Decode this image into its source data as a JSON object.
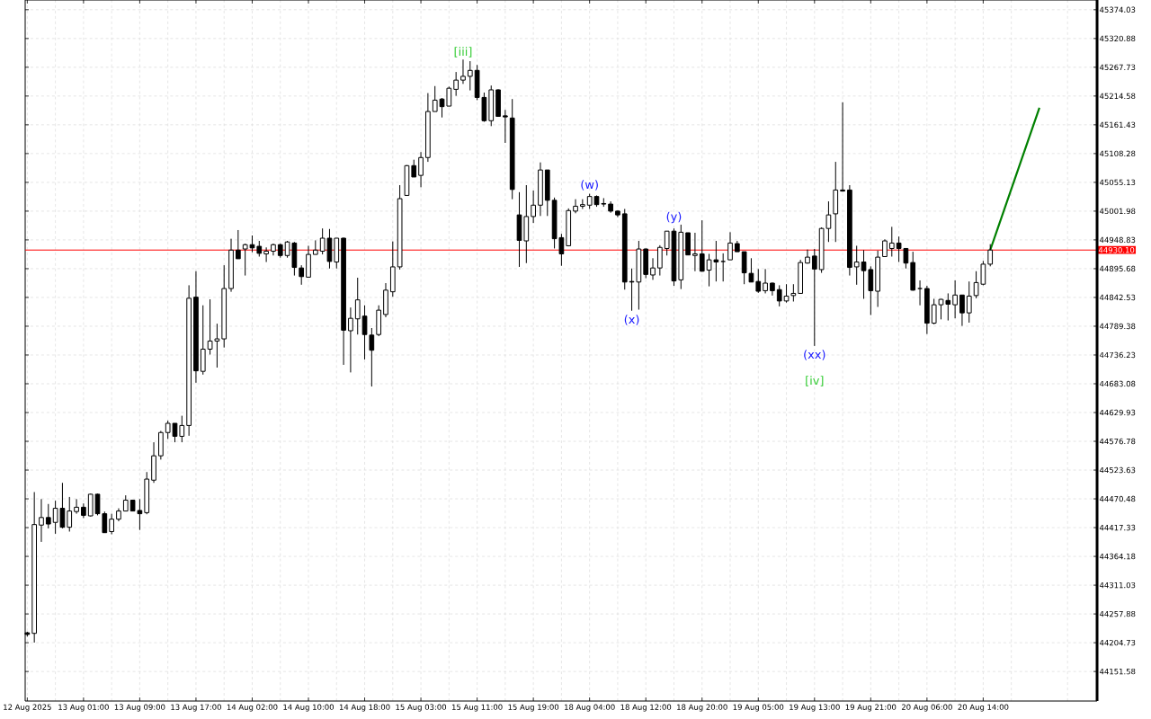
{
  "chart_data": {
    "type": "candlestick",
    "categories": [
      "12 Aug 2025",
      null,
      null,
      null,
      null,
      null,
      null,
      null,
      "13 Aug 01:00",
      null,
      null,
      null,
      null,
      null,
      null,
      null,
      "13 Aug 09:00",
      null,
      null,
      null,
      null,
      null,
      null,
      null,
      "13 Aug 17:00",
      null,
      null,
      null,
      null,
      null,
      null,
      null,
      "14 Aug 02:00",
      null,
      null,
      null,
      null,
      null,
      null,
      null,
      "14 Aug 10:00",
      null,
      null,
      null,
      null,
      null,
      null,
      null,
      "14 Aug 18:00",
      null,
      null,
      null,
      null,
      null,
      null,
      null,
      "15 Aug 03:00",
      null,
      null,
      null,
      null,
      null,
      null,
      null,
      "15 Aug 11:00",
      null,
      null,
      null,
      null,
      null,
      null,
      null,
      "15 Aug 19:00",
      null,
      null,
      null,
      null,
      null,
      null,
      null,
      "18 Aug 04:00",
      null,
      null,
      null,
      null,
      null,
      null,
      null,
      "18 Aug 12:00",
      null,
      null,
      null,
      null,
      null,
      null,
      null,
      "18 Aug 20:00",
      null,
      null,
      null,
      null,
      null,
      null,
      null,
      "19 Aug 05:00",
      null,
      null,
      null,
      null,
      null,
      null,
      null,
      "19 Aug 13:00",
      null,
      null,
      null,
      null,
      null,
      null,
      null,
      "19 Aug 21:00",
      null,
      null,
      null,
      null,
      null,
      null,
      null,
      "20 Aug 06:00",
      null,
      null,
      null,
      null,
      null,
      null,
      null,
      "20 Aug 14:00",
      null,
      null,
      null,
      null,
      null,
      null,
      null,
      null,
      null,
      null,
      null,
      null,
      null,
      null,
      null,
      null
    ],
    "ohlc": [
      [
        44223,
        44225,
        44216,
        44220
      ],
      [
        44222,
        44483,
        44205,
        44423
      ],
      [
        44422,
        44470,
        44391,
        44436
      ],
      [
        44436,
        44461,
        44416,
        44424
      ],
      [
        44427,
        44467,
        44406,
        44453
      ],
      [
        44453,
        44500,
        44416,
        44418
      ],
      [
        44418,
        44474,
        44410,
        44448
      ],
      [
        44447,
        44470,
        44443,
        44455
      ],
      [
        44455,
        44462,
        44435,
        44440
      ],
      [
        44439,
        44480,
        44438,
        44479
      ],
      [
        44479,
        44480,
        44440,
        44443
      ],
      [
        44443,
        44447,
        44408,
        44408
      ],
      [
        44410,
        44443,
        44405,
        44433
      ],
      [
        44433,
        44453,
        44429,
        44448
      ],
      [
        44448,
        44477,
        44448,
        44468
      ],
      [
        44468,
        44468,
        44448,
        44448
      ],
      [
        44449,
        44470,
        44413,
        44443
      ],
      [
        44445,
        44520,
        44442,
        44507
      ],
      [
        44505,
        44575,
        44500,
        44550
      ],
      [
        44550,
        44596,
        44543,
        44593
      ],
      [
        44593,
        44615,
        44581,
        44610
      ],
      [
        44610,
        44610,
        44575,
        44586
      ],
      [
        44586,
        44624,
        44575,
        44606
      ],
      [
        44606,
        44865,
        44587,
        44841
      ],
      [
        44843,
        44891,
        44685,
        44707
      ],
      [
        44706,
        44828,
        44700,
        44747
      ],
      [
        44747,
        44839,
        44737,
        44762
      ],
      [
        44762,
        44794,
        44713,
        44766
      ],
      [
        44766,
        44902,
        44750,
        44859
      ],
      [
        44859,
        44951,
        44853,
        44930
      ],
      [
        44930,
        44967,
        44914,
        44914
      ],
      [
        44932,
        44942,
        44883,
        44940
      ],
      [
        44940,
        44957,
        44926,
        44934
      ],
      [
        44937,
        44947,
        44918,
        44924
      ],
      [
        44923,
        44935,
        44908,
        44928
      ],
      [
        44928,
        44942,
        44920,
        44940
      ],
      [
        44940,
        44942,
        44916,
        44920
      ],
      [
        44920,
        44947,
        44916,
        44945
      ],
      [
        44943,
        44945,
        44883,
        44898
      ],
      [
        44897,
        44902,
        44866,
        44881
      ],
      [
        44880,
        44938,
        44880,
        44922
      ],
      [
        44922,
        44948,
        44922,
        44930
      ],
      [
        44928,
        44970,
        44922,
        44952
      ],
      [
        44952,
        44969,
        44896,
        44909
      ],
      [
        44908,
        44952,
        44896,
        44952
      ],
      [
        44952,
        44953,
        44718,
        44782
      ],
      [
        44781,
        44824,
        44704,
        44804
      ],
      [
        44803,
        44879,
        44774,
        44838
      ],
      [
        44808,
        44828,
        44728,
        44774
      ],
      [
        44773,
        44786,
        44678,
        44745
      ],
      [
        44774,
        44828,
        44771,
        44819
      ],
      [
        44811,
        44869,
        44806,
        44856
      ],
      [
        44853,
        44946,
        44844,
        44899
      ],
      [
        44899,
        45050,
        44894,
        45025
      ],
      [
        45031,
        45087,
        45031,
        45086
      ],
      [
        45086,
        45097,
        45065,
        45065
      ],
      [
        45068,
        45111,
        45046,
        45101
      ],
      [
        45101,
        45220,
        45093,
        45186
      ],
      [
        45186,
        45233,
        45186,
        45207
      ],
      [
        45209,
        45211,
        45175,
        45195
      ],
      [
        45196,
        45232,
        45196,
        45229
      ],
      [
        45227,
        45259,
        45215,
        45244
      ],
      [
        45244,
        45282,
        45237,
        45251
      ],
      [
        45251,
        45279,
        45225,
        45262
      ],
      [
        45262,
        45272,
        45207,
        45212
      ],
      [
        45212,
        45221,
        45167,
        45169
      ],
      [
        45169,
        45234,
        45159,
        45226
      ],
      [
        45226,
        45227,
        45177,
        45177
      ],
      [
        45178,
        45189,
        45128,
        45176
      ],
      [
        45174,
        45209,
        45024,
        45042
      ],
      [
        44995,
        45037,
        44899,
        44948
      ],
      [
        44947,
        45050,
        44906,
        44992
      ],
      [
        44992,
        45040,
        44980,
        45013
      ],
      [
        45013,
        45092,
        44993,
        45078
      ],
      [
        45078,
        45078,
        44993,
        45022
      ],
      [
        45022,
        45027,
        44933,
        44951
      ],
      [
        44953,
        44960,
        44901,
        44923
      ],
      [
        44938,
        45007,
        44937,
        45003
      ],
      [
        45002,
        45024,
        44998,
        45011
      ],
      [
        45011,
        45024,
        45006,
        45014
      ],
      [
        45013,
        45034,
        45006,
        45029
      ],
      [
        45029,
        45031,
        45010,
        45014
      ],
      [
        45016,
        45026,
        45010,
        45015
      ],
      [
        45015,
        45020,
        44999,
        45002
      ],
      [
        45002,
        45003,
        44991,
        44995
      ],
      [
        44997,
        45006,
        44857,
        44871
      ],
      [
        44872,
        44896,
        44818,
        44871
      ],
      [
        44871,
        44947,
        44820,
        44932
      ],
      [
        44932,
        44933,
        44878,
        44885
      ],
      [
        44884,
        44915,
        44875,
        44897
      ],
      [
        44897,
        44939,
        44883,
        44935
      ],
      [
        44933,
        44965,
        44920,
        44965
      ],
      [
        44965,
        44970,
        44864,
        44873
      ],
      [
        44875,
        44977,
        44858,
        44963
      ],
      [
        44962,
        44962,
        44921,
        44921
      ],
      [
        44920,
        44962,
        44891,
        44923
      ],
      [
        44923,
        44985,
        44890,
        44891
      ],
      [
        44893,
        44923,
        44863,
        44912
      ],
      [
        44912,
        44947,
        44872,
        44908
      ],
      [
        44909,
        44924,
        44872,
        44909
      ],
      [
        44912,
        44963,
        44912,
        44943
      ],
      [
        44942,
        44947,
        44927,
        44927
      ],
      [
        44927,
        44927,
        44867,
        44888
      ],
      [
        44887,
        44915,
        44871,
        44871
      ],
      [
        44872,
        44895,
        44851,
        44854
      ],
      [
        44855,
        44895,
        44850,
        44869
      ],
      [
        44869,
        44870,
        44846,
        44855
      ],
      [
        44857,
        44865,
        44826,
        44836
      ],
      [
        44836,
        44867,
        44833,
        44845
      ],
      [
        44846,
        44867,
        44835,
        44850
      ],
      [
        44850,
        44912,
        44850,
        44907
      ],
      [
        44906,
        44931,
        44905,
        44917
      ],
      [
        44919,
        44932,
        44753,
        44895
      ],
      [
        44894,
        44972,
        44888,
        44970
      ],
      [
        44970,
        45020,
        44945,
        44995
      ],
      [
        44997,
        45093,
        44945,
        45041
      ],
      [
        45041,
        45203,
        45038,
        45039
      ],
      [
        45041,
        45050,
        44883,
        44898
      ],
      [
        44899,
        44938,
        44866,
        44908
      ],
      [
        44908,
        44930,
        44840,
        44892
      ],
      [
        44894,
        44900,
        44810,
        44855
      ],
      [
        44854,
        44929,
        44825,
        44917
      ],
      [
        44918,
        44950,
        44918,
        44947
      ],
      [
        44933,
        44973,
        44918,
        44943
      ],
      [
        44943,
        44955,
        44908,
        44933
      ],
      [
        44933,
        44933,
        44896,
        44906
      ],
      [
        44907,
        44927,
        44855,
        44856
      ],
      [
        44859,
        44874,
        44828,
        44859
      ],
      [
        44859,
        44864,
        44775,
        44795
      ],
      [
        44795,
        44840,
        44793,
        44829
      ],
      [
        44829,
        44840,
        44802,
        44839
      ],
      [
        44837,
        44850,
        44800,
        44830
      ],
      [
        44829,
        44874,
        44804,
        44847
      ],
      [
        44847,
        44847,
        44790,
        44814
      ],
      [
        44814,
        44872,
        44796,
        44845
      ],
      [
        44846,
        44891,
        44841,
        44870
      ],
      [
        44867,
        44910,
        44865,
        44904
      ],
      [
        44904,
        44941,
        44900,
        44930.1
      ],
      null,
      null,
      null,
      null,
      null,
      null,
      null,
      null,
      null,
      null,
      null,
      null,
      null,
      null,
      null
    ],
    "series": [
      {
        "type": "line",
        "color": "#008000",
        "values": [
          null,
          null,
          null,
          null,
          null,
          null,
          null,
          null,
          null,
          null,
          null,
          null,
          null,
          null,
          null,
          null,
          null,
          null,
          null,
          null,
          null,
          null,
          null,
          null,
          null,
          null,
          null,
          null,
          null,
          null,
          null,
          null,
          null,
          null,
          null,
          null,
          null,
          null,
          null,
          null,
          null,
          null,
          null,
          null,
          null,
          null,
          null,
          null,
          null,
          null,
          null,
          null,
          null,
          null,
          null,
          null,
          null,
          null,
          null,
          null,
          null,
          null,
          null,
          null,
          null,
          null,
          null,
          null,
          null,
          null,
          null,
          null,
          null,
          null,
          null,
          null,
          null,
          null,
          null,
          null,
          null,
          null,
          null,
          null,
          null,
          null,
          null,
          null,
          null,
          null,
          null,
          null,
          null,
          null,
          null,
          null,
          null,
          null,
          null,
          null,
          null,
          null,
          null,
          null,
          null,
          null,
          null,
          null,
          null,
          null,
          null,
          null,
          null,
          null,
          null,
          null,
          null,
          null,
          null,
          null,
          null,
          null,
          null,
          null,
          null,
          null,
          null,
          null,
          null,
          null,
          null,
          null,
          null,
          null,
          null,
          null,
          null,
          44930,
          null,
          null,
          null,
          null,
          null,
          null,
          45193,
          null,
          null,
          null,
          null,
          null,
          null,
          null,
          null
        ]
      }
    ],
    "ylim": [
      44097,
      45392
    ],
    "yticks": [
      44151.58,
      44204.73,
      44257.88,
      44311.03,
      44364.18,
      44417.33,
      44470.48,
      44523.63,
      44576.78,
      44629.93,
      44683.08,
      44736.23,
      44789.38,
      44842.53,
      44895.68,
      44948.83,
      45001.98,
      45055.13,
      45108.28,
      45161.43,
      45214.58,
      45267.73,
      45320.88,
      45374.03
    ],
    "grid": true,
    "ref_lines": [
      {
        "axis": "y",
        "value": 44930.1,
        "label": "44930.10",
        "color": "#ff0000"
      }
    ],
    "annotations": [
      "[iii]",
      "(w)",
      "(x)",
      "(y)",
      "(xx)",
      "[iv]"
    ]
  }
}
